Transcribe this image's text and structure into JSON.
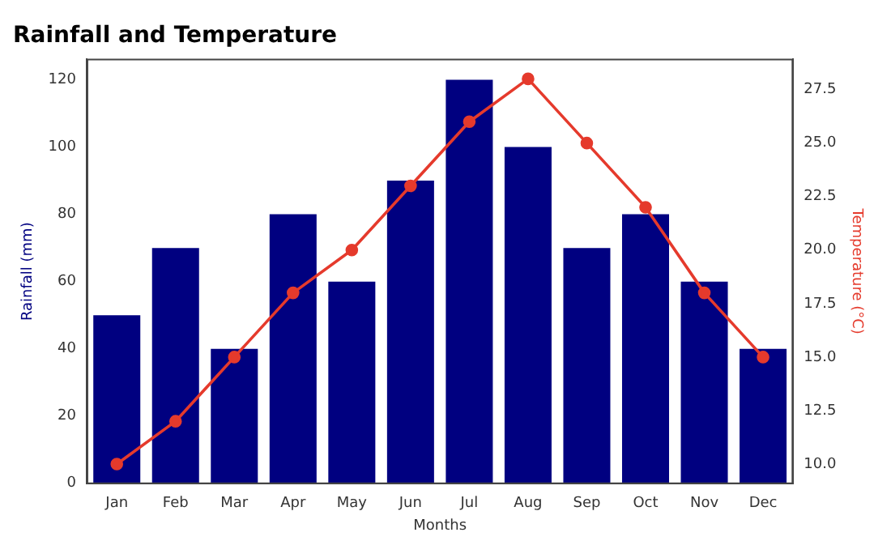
{
  "chart_data": {
    "type": "bar",
    "title": "Rainfall and Temperature",
    "xlabel": "Months",
    "ylabel": "Rainfall (mm)",
    "y2label": "Temperature (°C)",
    "categories": [
      "Jan",
      "Feb",
      "Mar",
      "Apr",
      "May",
      "Jun",
      "Jul",
      "Aug",
      "Sep",
      "Oct",
      "Nov",
      "Dec"
    ],
    "series": [
      {
        "color": "#000080",
        "values": [
          50,
          70,
          40,
          80,
          60,
          90,
          120,
          100,
          70,
          80,
          60,
          40
        ]
      },
      {
        "type": "line",
        "axis": "y2",
        "color": "#e53a2c",
        "values": [
          10,
          12,
          15,
          18,
          20,
          23,
          26,
          28,
          25,
          22,
          18,
          15
        ]
      }
    ],
    "ylim": [
      0,
      126
    ],
    "yticks": [
      0,
      20,
      40,
      60,
      80,
      100,
      120
    ],
    "y2lim": [
      9.1,
      28.9
    ],
    "y2ticks": [
      {
        "value": 10,
        "label": "10.0"
      },
      {
        "value": 12.5,
        "label": "12.5"
      },
      {
        "value": 15,
        "label": "15.0"
      },
      {
        "value": 17.5,
        "label": "17.5"
      },
      {
        "value": 20,
        "label": "20.0"
      },
      {
        "value": 22.5,
        "label": "22.5"
      },
      {
        "value": 25,
        "label": "25.0"
      },
      {
        "value": 27.5,
        "label": "27.5"
      }
    ],
    "grid": false,
    "legend": false,
    "marker": "circle",
    "line_style": "solid"
  }
}
